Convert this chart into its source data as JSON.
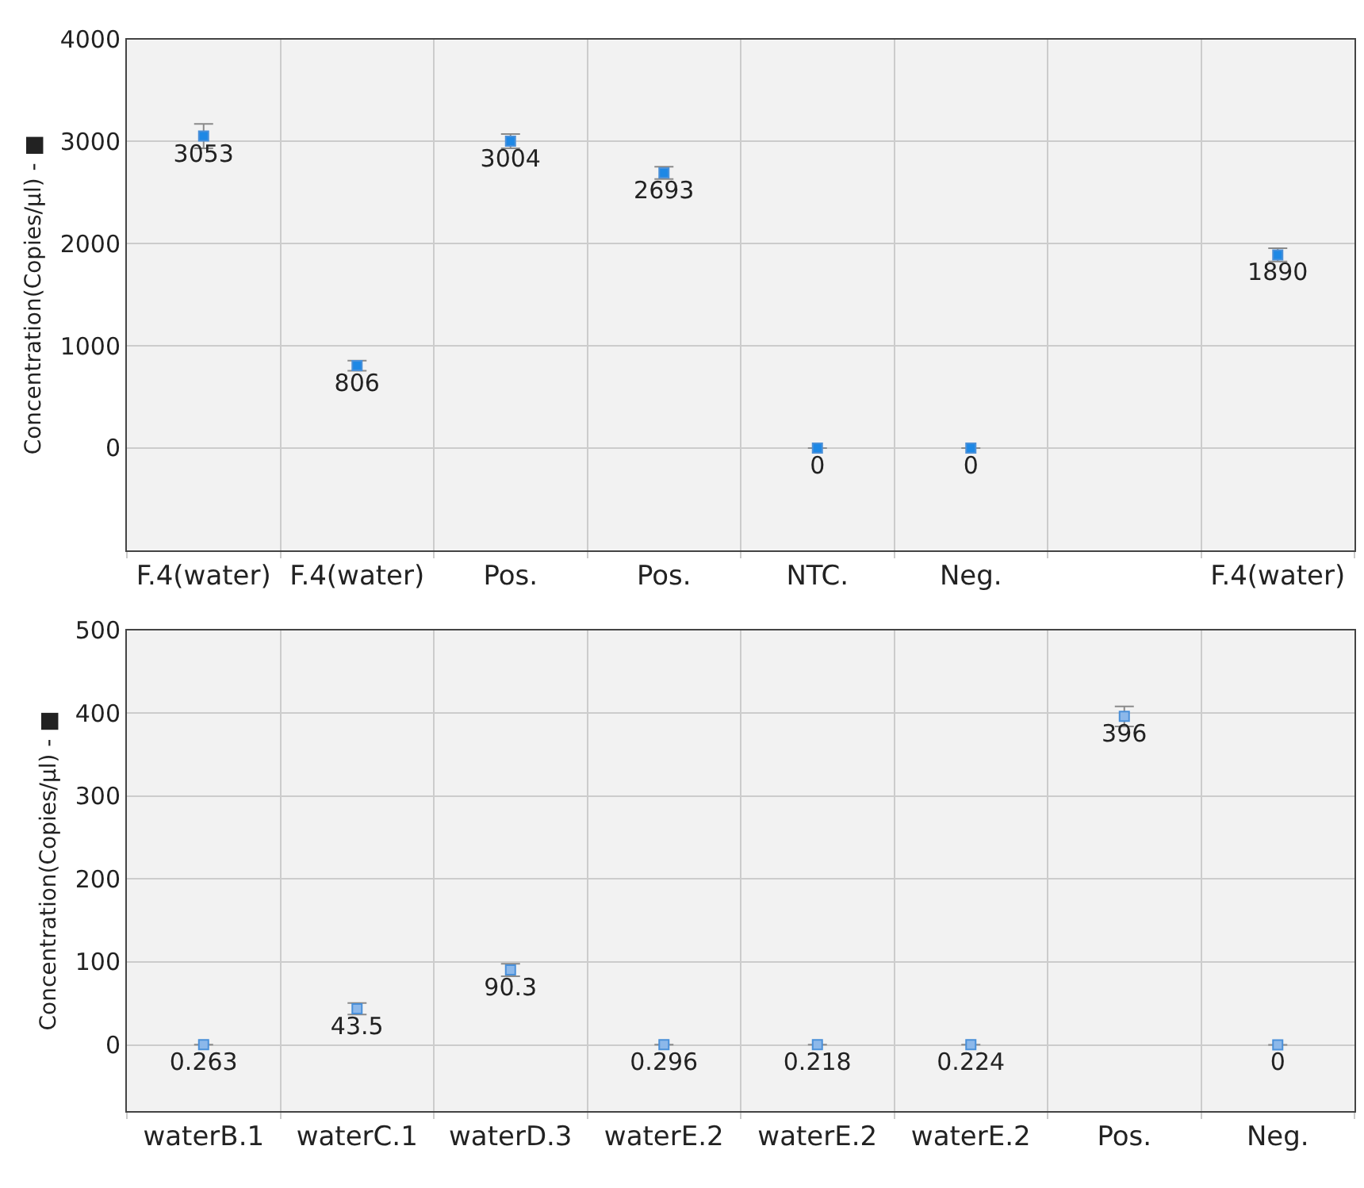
{
  "chart_data": [
    {
      "type": "scatter",
      "ylabel": "Concentration(Copies/µl) - ■",
      "categories": [
        "F.4(water)",
        "F.4(water)",
        "Pos.",
        "Pos.",
        "NTC.",
        "Neg.",
        null,
        "F.4(water)"
      ],
      "series": [
        {
          "color": "#1e88e5",
          "values": [
            3053,
            806,
            3004,
            2693,
            0,
            0,
            null,
            1890
          ],
          "errors": [
            120,
            50,
            70,
            60,
            null,
            null,
            null,
            65
          ]
        }
      ],
      "ylim": [
        -1000,
        4000
      ],
      "yticks": [
        0,
        1000,
        2000,
        3000,
        4000
      ],
      "grid": true,
      "marker": "square",
      "data_labels": true
    },
    {
      "type": "scatter",
      "ylabel": "Concentration(Copies/µl) - ■",
      "categories": [
        "waterB.1",
        "waterC.1",
        "waterD.3",
        "waterE.2",
        "waterE.2",
        "waterE.2",
        "Pos.",
        "Neg."
      ],
      "series": [
        {
          "color": "#8cb8ea",
          "values": [
            0.263,
            43.5,
            90.3,
            0.296,
            0.218,
            0.224,
            396,
            0
          ],
          "errors": [
            null,
            7,
            7.5,
            null,
            null,
            null,
            12,
            null
          ]
        }
      ],
      "ylim": [
        -80,
        500
      ],
      "yticks": [
        0,
        100,
        200,
        300,
        400,
        500
      ],
      "grid": true,
      "marker": "square",
      "data_labels": true
    }
  ]
}
